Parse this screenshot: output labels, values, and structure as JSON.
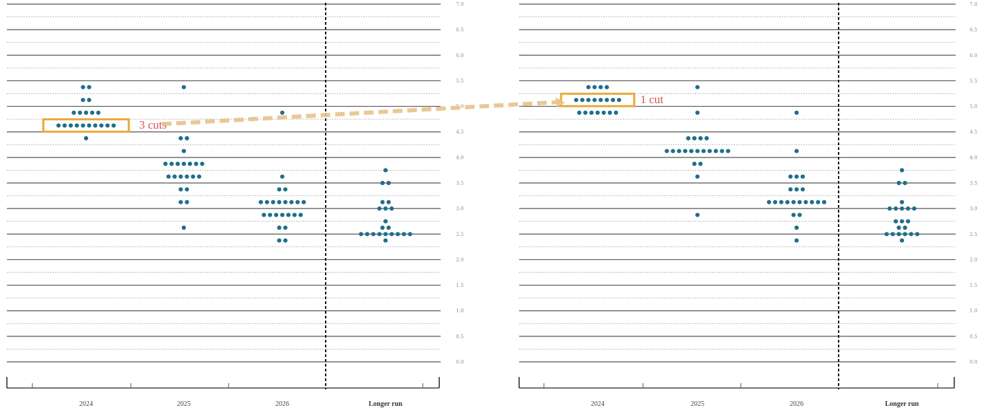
{
  "chart_data": [
    {
      "type": "scatter",
      "title": "",
      "xlabel": "",
      "ylabel": "",
      "categories": [
        "2024",
        "2025",
        "2026",
        "Longer run"
      ],
      "ytick_labels": [
        "0.0",
        "0.5",
        "1.0",
        "1.5",
        "2.0",
        "2.5",
        "3.0",
        "3.5",
        "4.0",
        "4.5",
        "5.0",
        "5.5",
        "6.0",
        "6.5",
        "7.0"
      ],
      "ylim": [
        0,
        7
      ],
      "grid": true,
      "dots": {
        "2024": [
          [
            5.375,
            2
          ],
          [
            5.125,
            2
          ],
          [
            4.875,
            5
          ],
          [
            4.625,
            10
          ],
          [
            4.375,
            1
          ]
        ],
        "2025": [
          [
            5.375,
            1
          ],
          [
            4.375,
            2
          ],
          [
            4.125,
            1
          ],
          [
            3.875,
            7
          ],
          [
            3.625,
            6
          ],
          [
            3.375,
            2
          ],
          [
            3.125,
            2
          ],
          [
            2.625,
            1
          ]
        ],
        "2026": [
          [
            4.875,
            1
          ],
          [
            3.625,
            1
          ],
          [
            3.375,
            2
          ],
          [
            3.125,
            8
          ],
          [
            2.875,
            7
          ],
          [
            2.625,
            2
          ],
          [
            2.375,
            2
          ]
        ],
        "Longer run": [
          [
            3.75,
            1
          ],
          [
            3.5,
            2
          ],
          [
            3.125,
            2
          ],
          [
            3.0,
            3
          ],
          [
            2.75,
            1
          ],
          [
            2.625,
            2
          ],
          [
            2.5,
            9
          ],
          [
            2.375,
            1
          ]
        ]
      },
      "highlight": {
        "category": "2024",
        "value": 4.625
      },
      "annotation": "3 cuts"
    },
    {
      "type": "scatter",
      "title": "",
      "xlabel": "",
      "ylabel": "",
      "categories": [
        "2024",
        "2025",
        "2026",
        "Longer run"
      ],
      "ytick_labels": [
        "0.0",
        "0.5",
        "1.0",
        "1.5",
        "2.0",
        "2.5",
        "3.0",
        "3.5",
        "4.0",
        "4.5",
        "5.0",
        "5.5",
        "6.0",
        "6.5",
        "7.0"
      ],
      "ylim": [
        0,
        7
      ],
      "grid": true,
      "dots": {
        "2024": [
          [
            5.375,
            4
          ],
          [
            5.125,
            8
          ],
          [
            4.875,
            7
          ]
        ],
        "2025": [
          [
            5.375,
            1
          ],
          [
            4.875,
            1
          ],
          [
            4.375,
            4
          ],
          [
            4.125,
            11
          ],
          [
            3.875,
            2
          ],
          [
            3.625,
            1
          ],
          [
            2.875,
            1
          ]
        ],
        "2026": [
          [
            4.875,
            1
          ],
          [
            4.125,
            1
          ],
          [
            3.625,
            3
          ],
          [
            3.375,
            3
          ],
          [
            3.125,
            10
          ],
          [
            2.875,
            2
          ],
          [
            2.625,
            1
          ],
          [
            2.375,
            1
          ]
        ],
        "Longer run": [
          [
            3.75,
            1
          ],
          [
            3.5,
            2
          ],
          [
            3.125,
            1
          ],
          [
            3.0,
            5
          ],
          [
            2.75,
            3
          ],
          [
            2.625,
            2
          ],
          [
            2.5,
            6
          ],
          [
            2.375,
            1
          ]
        ]
      },
      "highlight": {
        "category": "2024",
        "value": 5.125
      },
      "annotation": "1 cut"
    }
  ],
  "colors": {
    "dot": "#1f6f8b",
    "gridline": "#555555",
    "gridline_minor": "#9a9a9a",
    "highlight": "#e8a93a",
    "annotation": "#d9534f",
    "connector": "#e8c38a"
  }
}
